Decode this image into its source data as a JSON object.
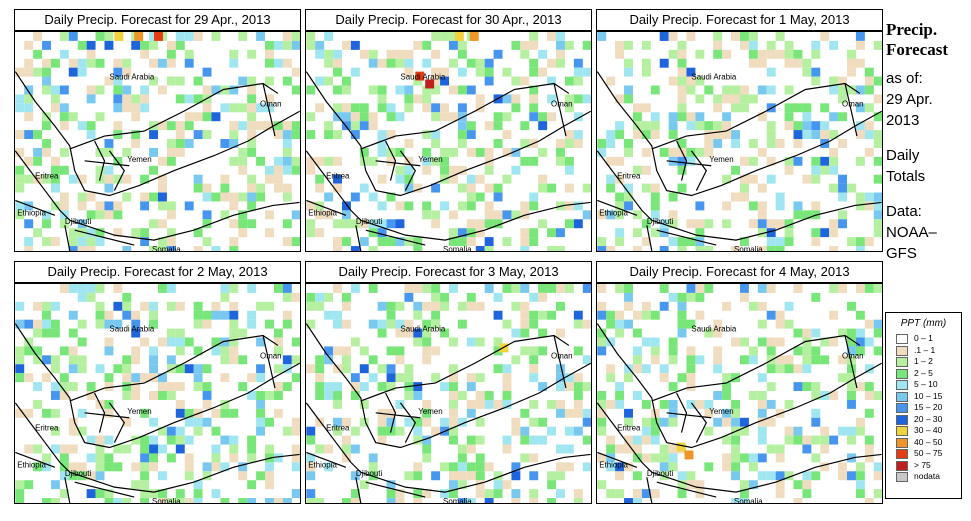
{
  "panels": [
    {
      "title": "Daily Precip. Forecast for  29 Apr., 2013"
    },
    {
      "title": "Daily Precip. Forecast for  30 Apr., 2013"
    },
    {
      "title": "Daily Precip. Forecast for  1 May, 2013"
    },
    {
      "title": "Daily Precip. Forecast for  2 May, 2013"
    },
    {
      "title": "Daily Precip. Forecast for  3 May, 2013"
    },
    {
      "title": "Daily Precip. Forecast for  4 May, 2013"
    }
  ],
  "countries": {
    "saudi": "Saudi Arabia",
    "oman": "Oman",
    "yemen": "Yemen",
    "eritrea": "Eritrea",
    "ethiopia": "Ethiopia",
    "djibouti": "Djibouti",
    "somalia": "Somalia"
  },
  "side": {
    "heading1": "Precip.",
    "heading2": "Forecast",
    "asof1": "as of:",
    "asof2": "29 Apr.",
    "asof3": "2013",
    "totals1": "Daily",
    "totals2": "Totals",
    "data1": "Data:",
    "data2": "NOAA–",
    "data3": "GFS"
  },
  "legend": {
    "title": "PPT (mm)",
    "items": [
      {
        "label": "0 – 1",
        "color": "#ffffff"
      },
      {
        "label": ".1 – 1",
        "color": "#f0dcbe"
      },
      {
        "label": "1 – 2",
        "color": "#b4f0a0"
      },
      {
        "label": "2 – 5",
        "color": "#78e678"
      },
      {
        "label": "5 – 10",
        "color": "#a0e6f0"
      },
      {
        "label": "10 – 15",
        "color": "#78c8f0"
      },
      {
        "label": "15 – 20",
        "color": "#4696f0"
      },
      {
        "label": "20 – 30",
        "color": "#1e64dc"
      },
      {
        "label": "30 – 40",
        "color": "#f0d23c"
      },
      {
        "label": "40 – 50",
        "color": "#f09628"
      },
      {
        "label": "50 – 75",
        "color": "#e63c14"
      },
      {
        "label": "> 75",
        "color": "#be1e1e"
      },
      {
        "label": "nodata",
        "color": "#c8c8c8"
      }
    ]
  }
}
